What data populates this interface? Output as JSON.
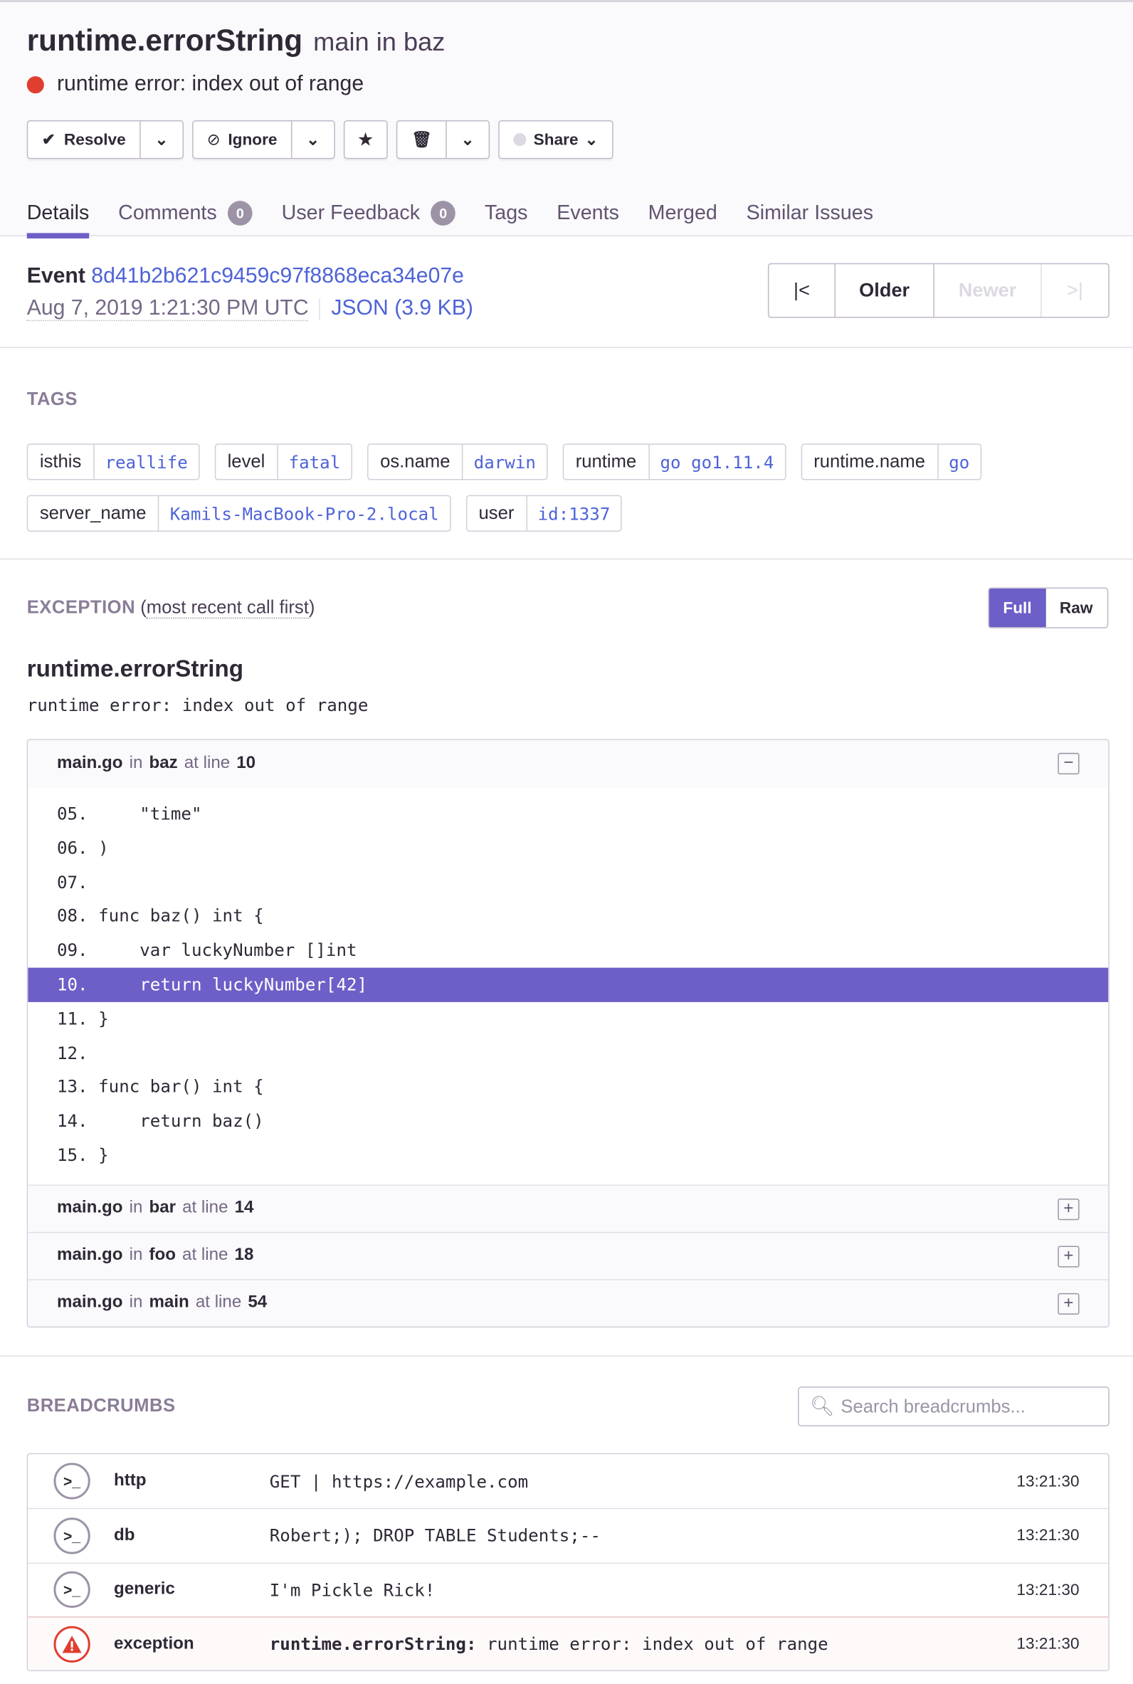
{
  "header": {
    "title": "runtime.errorString",
    "subtitle": "main in baz",
    "message": "runtime error: index out of range",
    "buttons": {
      "resolve": "Resolve",
      "ignore": "Ignore",
      "share": "Share"
    },
    "tabs": [
      {
        "label": "Details"
      },
      {
        "label": "Comments",
        "count": "0"
      },
      {
        "label": "User Feedback",
        "count": "0"
      },
      {
        "label": "Tags"
      },
      {
        "label": "Events"
      },
      {
        "label": "Merged"
      },
      {
        "label": "Similar Issues"
      }
    ]
  },
  "event": {
    "label": "Event",
    "id": "8d41b2b621c9459c97f8868eca34e07e",
    "date": "Aug 7, 2019 1:21:30 PM UTC",
    "json": "JSON (3.9 KB)",
    "nav": {
      "oldest": "|<",
      "older": "Older",
      "newer": "Newer",
      "newest": ">|"
    }
  },
  "tags": {
    "heading": "TAGS",
    "items": [
      {
        "key": "isthis",
        "value": "reallife"
      },
      {
        "key": "level",
        "value": "fatal"
      },
      {
        "key": "os.name",
        "value": "darwin"
      },
      {
        "key": "runtime",
        "value": "go go1.11.4"
      },
      {
        "key": "runtime.name",
        "value": "go"
      },
      {
        "key": "server_name",
        "value": "Kamils-MacBook-Pro-2.local"
      },
      {
        "key": "user",
        "value": "id:1337"
      }
    ]
  },
  "exception": {
    "heading": "EXCEPTION",
    "subheading": "most recent call first",
    "full": "Full",
    "raw": "Raw",
    "type": "runtime.errorString",
    "value": "runtime error: index out of range",
    "in": "in",
    "at_line": "at line",
    "frames": [
      {
        "file": "main.go",
        "func": "baz",
        "line": "10",
        "expanded": true
      },
      {
        "file": "main.go",
        "func": "bar",
        "line": "14"
      },
      {
        "file": "main.go",
        "func": "foo",
        "line": "18"
      },
      {
        "file": "main.go",
        "func": "main",
        "line": "54"
      }
    ],
    "code": [
      "05.     \"time\"",
      "06. )",
      "07.",
      "08. func baz() int {",
      "09.     var luckyNumber []int",
      "10.     return luckyNumber[42]",
      "11. }",
      "12.",
      "13. func bar() int {",
      "14.     return baz()",
      "15. }"
    ],
    "highlight_line": "10"
  },
  "breadcrumbs": {
    "heading": "BREADCRUMBS",
    "search_placeholder": "Search breadcrumbs...",
    "items": [
      {
        "category": "http",
        "message": "GET | https://example.com",
        "time": "13:21:30"
      },
      {
        "category": "db",
        "message": "Robert;); DROP TABLE Students;--",
        "time": "13:21:30"
      },
      {
        "category": "generic",
        "message": "I'm Pickle Rick!",
        "time": "13:21:30"
      },
      {
        "category": "exception",
        "message_type": "runtime.errorString:",
        "message": "runtime error: index out of range",
        "time": "13:21:30"
      }
    ]
  },
  "colors": {
    "accent": "#6c5fc7",
    "error": "#e03e2f",
    "link": "#4e63d8"
  }
}
